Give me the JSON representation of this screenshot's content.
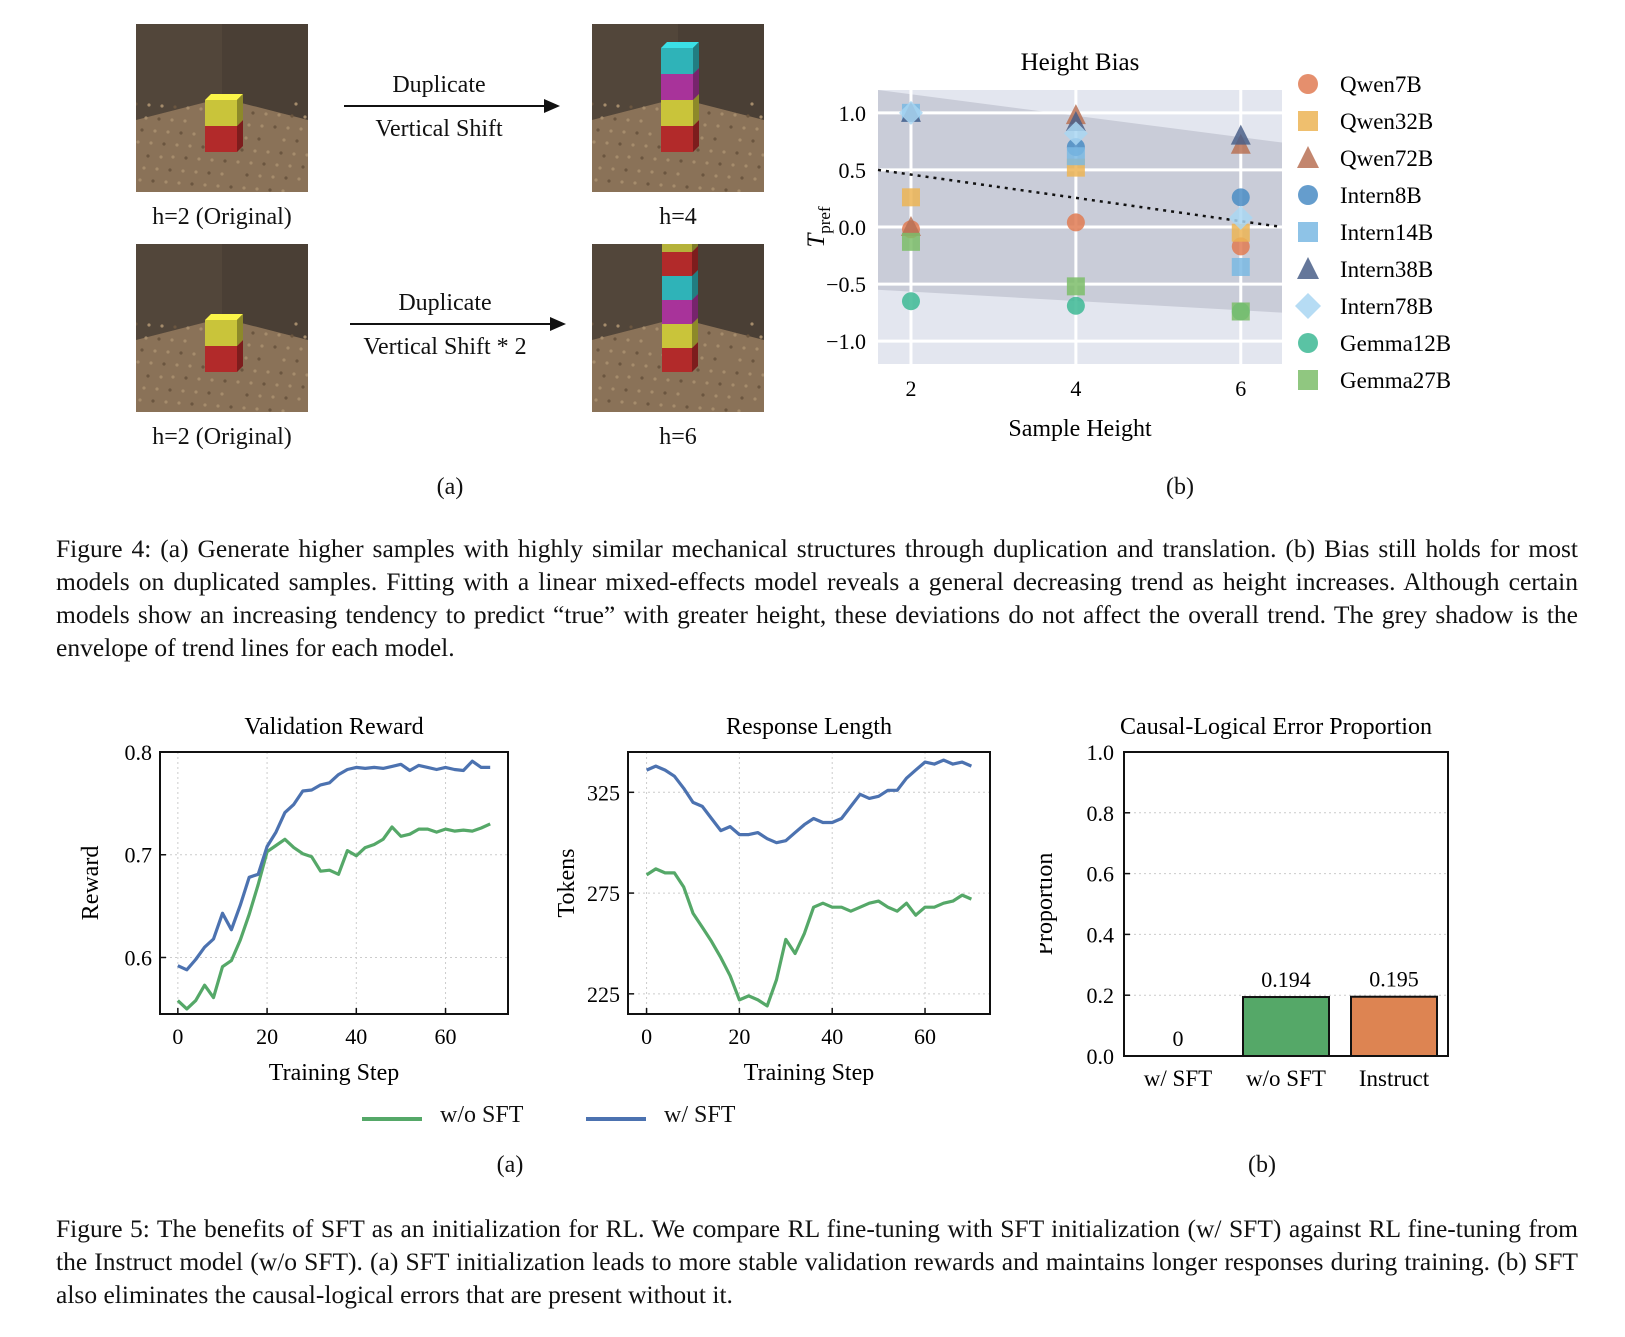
{
  "fig4": {
    "panel_a": {
      "scenes": [
        {
          "label": "h=2 (Original)",
          "stack": [
            "#b22a2a",
            "#c9c43a"
          ]
        },
        {
          "label": "h=4",
          "stack": [
            "#b22a2a",
            "#c9c43a",
            "#a8339a",
            "#2fb3b8"
          ]
        },
        {
          "label": "h=2 (Original)",
          "stack": [
            "#b22a2a",
            "#c9c43a"
          ]
        },
        {
          "label": "h=6",
          "stack": [
            "#b22a2a",
            "#c9c43a",
            "#a8339a",
            "#2fb3b8",
            "#b22a2a",
            "#b5b23a"
          ]
        }
      ],
      "arrows": [
        {
          "top": "Duplicate",
          "bottom": "Vertical Shift"
        },
        {
          "top": "Duplicate",
          "bottom": "Vertical Shift * 2"
        }
      ],
      "sublabel": "(a)"
    },
    "panel_b_sublabel": "(b)",
    "caption": "Figure 4: (a) Generate higher samples with highly similar mechanical structures through duplication and translation. (b) Bias still holds for most models on duplicated samples. Fitting with a linear mixed-effects model reveals a general decreasing trend as height increases. Although certain models show an increasing tendency to predict “true” with greater height, these deviations do not affect the overall trend. The grey shadow is the envelope of trend lines for each model."
  },
  "fig5": {
    "sublabel_a": "(a)",
    "sublabel_b": "(b)",
    "legend": [
      {
        "name": "w/o SFT",
        "color": "#55a868"
      },
      {
        "name": "w/ SFT",
        "color": "#4c72b0"
      }
    ],
    "caption": "Figure 5: The benefits of SFT as an initialization for RL. We compare RL fine-tuning with SFT initialization (w/ SFT) against RL fine-tuning from the Instruct model (w/o SFT). (a) SFT initialization leads to more stable validation rewards and maintains longer responses during training. (b) SFT also eliminates the causal-logical errors that are present without it."
  },
  "chart_data": [
    {
      "type": "scatter",
      "title": "Height Bias",
      "xlabel": "Sample Height",
      "ylabel": "T",
      "ylabel_sub": "pref",
      "xticks": [
        2,
        4,
        6
      ],
      "yticks": [
        "1.0",
        "0.5",
        "0.0",
        "−0.5",
        "−1.0"
      ],
      "xlim": [
        1.6,
        6.5
      ],
      "ylim": [
        -1.2,
        1.2
      ],
      "grid": true,
      "legend_position": "right",
      "series": [
        {
          "name": "Qwen7B",
          "marker": "circle",
          "color": "#e07b54",
          "x": [
            2,
            4,
            6
          ],
          "y": [
            -0.02,
            0.04,
            -0.17
          ]
        },
        {
          "name": "Qwen32B",
          "marker": "square",
          "color": "#ecb455",
          "x": [
            2,
            4,
            6
          ],
          "y": [
            0.26,
            0.52,
            -0.05
          ]
        },
        {
          "name": "Qwen72B",
          "marker": "triangle",
          "color": "#b87155",
          "x": [
            2,
            4,
            6
          ],
          "y": [
            0.0,
            0.98,
            0.72
          ]
        },
        {
          "name": "Intern8B",
          "marker": "circle",
          "color": "#4a8cc4",
          "x": [
            2,
            4,
            6
          ],
          "y": [
            1.0,
            0.7,
            0.26
          ]
        },
        {
          "name": "Intern14B",
          "marker": "square",
          "color": "#7ab8e3",
          "x": [
            2,
            4,
            6
          ],
          "y": [
            1.0,
            0.62,
            -0.35
          ]
        },
        {
          "name": "Intern38B",
          "marker": "triangle",
          "color": "#4a5f88",
          "x": [
            2,
            4,
            6
          ],
          "y": [
            1.0,
            0.92,
            0.8
          ]
        },
        {
          "name": "Intern78B",
          "marker": "diamond",
          "color": "#a9d6f2",
          "x": [
            2,
            4,
            6
          ],
          "y": [
            1.0,
            0.82,
            0.08
          ]
        },
        {
          "name": "Gemma12B",
          "marker": "circle",
          "color": "#3db894",
          "x": [
            2,
            4,
            6
          ],
          "y": [
            -0.65,
            -0.69,
            -0.74
          ]
        },
        {
          "name": "Gemma27B",
          "marker": "square",
          "color": "#7dbd6a",
          "x": [
            2,
            4,
            6
          ],
          "y": [
            -0.13,
            -0.52,
            -0.74
          ]
        }
      ],
      "trend_line": {
        "x": [
          1.6,
          6.5
        ],
        "y": [
          0.5,
          0.0
        ]
      },
      "envelope": {
        "upper": [
          1.2,
          0.74
        ],
        "lower": [
          -0.55,
          -0.75
        ]
      }
    },
    {
      "type": "line",
      "title": "Validation Reward",
      "xlabel": "Training Step",
      "ylabel": "Reward",
      "xticks": [
        0,
        20,
        40,
        60
      ],
      "yticks": [
        "0.6",
        "0.7",
        "0.8"
      ],
      "xlim": [
        -4,
        74
      ],
      "ylim": [
        0.545,
        0.8
      ],
      "grid": true,
      "series": [
        {
          "name": "w/o SFT",
          "color": "#55a868",
          "x": [
            0,
            2,
            4,
            6,
            8,
            10,
            12,
            14,
            16,
            18,
            20,
            22,
            24,
            26,
            28,
            30,
            32,
            34,
            36,
            38,
            40,
            42,
            44,
            46,
            48,
            50,
            52,
            54,
            56,
            58,
            60,
            62,
            64,
            66,
            68,
            70
          ],
          "y": [
            0.558,
            0.55,
            0.558,
            0.573,
            0.561,
            0.591,
            0.597,
            0.617,
            0.642,
            0.671,
            0.703,
            0.709,
            0.715,
            0.707,
            0.701,
            0.698,
            0.684,
            0.685,
            0.681,
            0.704,
            0.699,
            0.707,
            0.71,
            0.715,
            0.727,
            0.718,
            0.72,
            0.725,
            0.725,
            0.722,
            0.725,
            0.723,
            0.724,
            0.723,
            0.726,
            0.73
          ]
        },
        {
          "name": "w/ SFT",
          "color": "#4c72b0",
          "x": [
            0,
            2,
            4,
            6,
            8,
            10,
            12,
            14,
            16,
            18,
            20,
            22,
            24,
            26,
            28,
            30,
            32,
            34,
            36,
            38,
            40,
            42,
            44,
            46,
            48,
            50,
            52,
            54,
            56,
            58,
            60,
            62,
            64,
            66,
            68,
            70
          ],
          "y": [
            0.592,
            0.588,
            0.598,
            0.61,
            0.618,
            0.643,
            0.627,
            0.651,
            0.678,
            0.681,
            0.708,
            0.722,
            0.741,
            0.749,
            0.762,
            0.763,
            0.768,
            0.77,
            0.778,
            0.783,
            0.785,
            0.784,
            0.785,
            0.784,
            0.786,
            0.788,
            0.782,
            0.787,
            0.785,
            0.783,
            0.785,
            0.783,
            0.782,
            0.791,
            0.785,
            0.785
          ]
        }
      ]
    },
    {
      "type": "line",
      "title": "Response Length",
      "xlabel": "Training Step",
      "ylabel": "Tokens",
      "xticks": [
        0,
        20,
        40,
        60
      ],
      "yticks": [
        "225",
        "275",
        "325"
      ],
      "xlim": [
        -4,
        74
      ],
      "ylim": [
        215,
        345
      ],
      "grid": true,
      "series": [
        {
          "name": "w/o SFT",
          "color": "#55a868",
          "x": [
            0,
            2,
            4,
            6,
            8,
            10,
            12,
            14,
            16,
            18,
            20,
            22,
            24,
            26,
            28,
            30,
            32,
            34,
            36,
            38,
            40,
            42,
            44,
            46,
            48,
            50,
            52,
            54,
            56,
            58,
            60,
            62,
            64,
            66,
            68,
            70
          ],
          "y": [
            284,
            287,
            285,
            285,
            278,
            265,
            258,
            251,
            243,
            234,
            222,
            224,
            222,
            219,
            232,
            252,
            245,
            255,
            268,
            270,
            268,
            268,
            266,
            268,
            270,
            271,
            268,
            266,
            270,
            264,
            268,
            268,
            270,
            271,
            274,
            272
          ]
        },
        {
          "name": "w/ SFT",
          "color": "#4c72b0",
          "x": [
            0,
            2,
            4,
            6,
            8,
            10,
            12,
            14,
            16,
            18,
            20,
            22,
            24,
            26,
            28,
            30,
            32,
            34,
            36,
            38,
            40,
            42,
            44,
            46,
            48,
            50,
            52,
            54,
            56,
            58,
            60,
            62,
            64,
            66,
            68,
            70
          ],
          "y": [
            336,
            338,
            336,
            333,
            327,
            320,
            318,
            312,
            306,
            308,
            304,
            304,
            305,
            302,
            300,
            301,
            305,
            309,
            312,
            310,
            310,
            312,
            318,
            324,
            322,
            323,
            326,
            326,
            332,
            336,
            340,
            339,
            341,
            339,
            340,
            338
          ]
        }
      ]
    },
    {
      "type": "bar",
      "title": "Causal-Logical Error Proportion",
      "xlabel": "",
      "ylabel": "Proportion",
      "categories": [
        "w/ SFT",
        "w/o SFT",
        "Instruct"
      ],
      "values": [
        0,
        0.194,
        0.195
      ],
      "labels": [
        "0",
        "0.194",
        "0.195"
      ],
      "colors": [
        "#4c72b0",
        "#55a868",
        "#dd8452"
      ],
      "yticks": [
        "0.0",
        "0.2",
        "0.4",
        "0.6",
        "0.8",
        "1.0"
      ],
      "ylim": [
        0,
        1.0
      ],
      "grid": true
    }
  ]
}
